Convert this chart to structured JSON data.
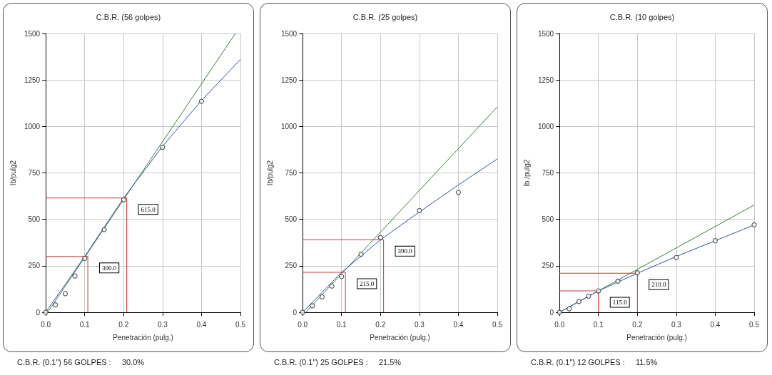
{
  "chart_data": [
    {
      "type": "scatter",
      "title": "C.B.R. (56 golpes)",
      "xlabel": "Penetración (pulg.)",
      "ylabel": "lb/pulg2",
      "xlim": [
        0,
        0.5
      ],
      "ylim": [
        0,
        1500
      ],
      "xticks": [
        {
          "value": 0,
          "label": "0.0"
        },
        {
          "value": 0.1,
          "label": "0.1"
        },
        {
          "value": 0.2,
          "label": "0.2"
        },
        {
          "value": 0.3,
          "label": "0.3"
        },
        {
          "value": 0.4,
          "label": "0.4"
        },
        {
          "value": 0.5,
          "label": "0.5"
        }
      ],
      "yticks": [
        0,
        250,
        500,
        750,
        1000,
        1250,
        1500
      ],
      "grid": true,
      "marker": "circle",
      "series": [
        {
          "type": "line",
          "marker": "none",
          "color": "#cc3333",
          "x": [
            0,
            0.108,
            0.108
          ],
          "values": [
            300,
            300,
            0
          ]
        },
        {
          "type": "line",
          "marker": "none",
          "color": "#cc3333",
          "x": [
            0,
            0.208,
            0.208
          ],
          "values": [
            615,
            615,
            0
          ]
        },
        {
          "type": "line",
          "marker": "none",
          "color": "#3a7a3a",
          "x": [
            0.005,
            0.487
          ],
          "values": [
            0,
            1500
          ]
        },
        {
          "type": "line",
          "marker": "none",
          "color": "#3050a0",
          "x": [
            0,
            0.1,
            0.2,
            0.3,
            0.4,
            0.5
          ],
          "values": [
            0,
            300,
            615,
            893,
            1140,
            1360
          ]
        },
        {
          "color": "#333333",
          "x": [
            0,
            0.025,
            0.05,
            0.075,
            0.1,
            0.15,
            0.2,
            0.3,
            0.4
          ],
          "values": [
            0,
            40,
            100,
            195,
            290,
            445,
            605,
            888,
            1135
          ]
        }
      ],
      "annotations": [
        {
          "text": "300.0",
          "x": 0.108,
          "y": 300
        },
        {
          "text": "615.0",
          "x": 0.208,
          "y": 615
        },
        "C.B.R. (0.1\") 56 GOLPES :     30.0%"
      ]
    },
    {
      "type": "scatter",
      "title": "C.B.R. (25 golpes)",
      "xlabel": "Penetración (pulg.)",
      "ylabel": "lb/pulg2",
      "xlim": [
        0,
        0.5
      ],
      "ylim": [
        0,
        1500
      ],
      "xticks": [
        {
          "value": 0,
          "label": "0.0"
        },
        {
          "value": 0.1,
          "label": "0.1"
        },
        {
          "value": 0.2,
          "label": "0.2"
        },
        {
          "value": 0.3,
          "label": "0.3"
        },
        {
          "value": 0.4,
          "label": "0.4"
        },
        {
          "value": 0.5,
          "label": "0.5"
        }
      ],
      "yticks": [
        0,
        250,
        500,
        750,
        1000,
        1250,
        1500
      ],
      "grid": true,
      "marker": "circle",
      "series": [
        {
          "type": "line",
          "marker": "none",
          "color": "#cc3333",
          "x": [
            0,
            0.11,
            0.11
          ],
          "values": [
            215,
            215,
            0
          ]
        },
        {
          "type": "line",
          "marker": "none",
          "color": "#cc3333",
          "x": [
            0,
            0.208,
            0.208
          ],
          "values": [
            390,
            390,
            0
          ]
        },
        {
          "type": "line",
          "marker": "none",
          "color": "#3a7a3a",
          "x": [
            0.008,
            0.5
          ],
          "values": [
            0,
            1105
          ]
        },
        {
          "type": "line",
          "marker": "none",
          "color": "#3050a0",
          "x": [
            0,
            0.1,
            0.2,
            0.3,
            0.4,
            0.5
          ],
          "values": [
            0,
            215,
            390,
            540,
            685,
            825
          ]
        },
        {
          "color": "#333333",
          "x": [
            0,
            0.025,
            0.05,
            0.075,
            0.1,
            0.15,
            0.2,
            0.3,
            0.4
          ],
          "values": [
            0,
            35,
            83,
            141,
            192,
            312,
            402,
            547,
            645
          ]
        }
      ],
      "annotations": [
        {
          "text": "215.0",
          "x": 0.11,
          "y": 215
        },
        {
          "text": "390.0",
          "x": 0.208,
          "y": 390
        },
        "C.B.R. (0.1\") 25 GOLPES :     21.5%"
      ]
    },
    {
      "type": "scatter",
      "title": "C.B.R. (10 golpes)",
      "xlabel": "Penetración (pulg.)",
      "ylabel": "lb./pulg2",
      "xlim": [
        0,
        0.5
      ],
      "ylim": [
        0,
        1500
      ],
      "xticks": [
        {
          "value": 0,
          "label": "0.0"
        },
        {
          "value": 0.1,
          "label": "0.1"
        },
        {
          "value": 0.2,
          "label": "0.2"
        },
        {
          "value": 0.3,
          "label": "0.3"
        },
        {
          "value": 0.4,
          "label": "0.4"
        },
        {
          "value": 0.5,
          "label": "0.5"
        }
      ],
      "yticks": [
        0,
        250,
        500,
        750,
        1000,
        1250,
        1500
      ],
      "grid": true,
      "marker": "circle",
      "series": [
        {
          "type": "line",
          "marker": "none",
          "color": "#cc3333",
          "x": [
            0,
            0.1,
            0.1
          ],
          "values": [
            115,
            115,
            0
          ]
        },
        {
          "type": "line",
          "marker": "none",
          "color": "#cc3333",
          "x": [
            0,
            0.2,
            0.2
          ],
          "values": [
            210,
            210,
            0
          ]
        },
        {
          "type": "line",
          "marker": "none",
          "color": "#3a7a3a",
          "x": [
            0,
            0.5
          ],
          "values": [
            0,
            577
          ]
        },
        {
          "type": "line",
          "marker": "none",
          "color": "#3050a0",
          "x": [
            0,
            0.1,
            0.2,
            0.3,
            0.4,
            0.5
          ],
          "values": [
            0,
            115,
            210,
            300,
            385,
            470
          ]
        },
        {
          "color": "#333333",
          "x": [
            0,
            0.025,
            0.05,
            0.075,
            0.1,
            0.15,
            0.2,
            0.3,
            0.4,
            0.5
          ],
          "values": [
            0,
            19,
            58,
            87,
            115,
            167,
            212,
            295,
            385,
            470
          ]
        }
      ],
      "annotations": [
        {
          "text": "115.0",
          "x": 0.1,
          "y": 115
        },
        {
          "text": "210.0",
          "x": 0.2,
          "y": 210
        },
        "C.B.R. (0.1\") 12 GOLPES :     11.5%"
      ]
    }
  ]
}
